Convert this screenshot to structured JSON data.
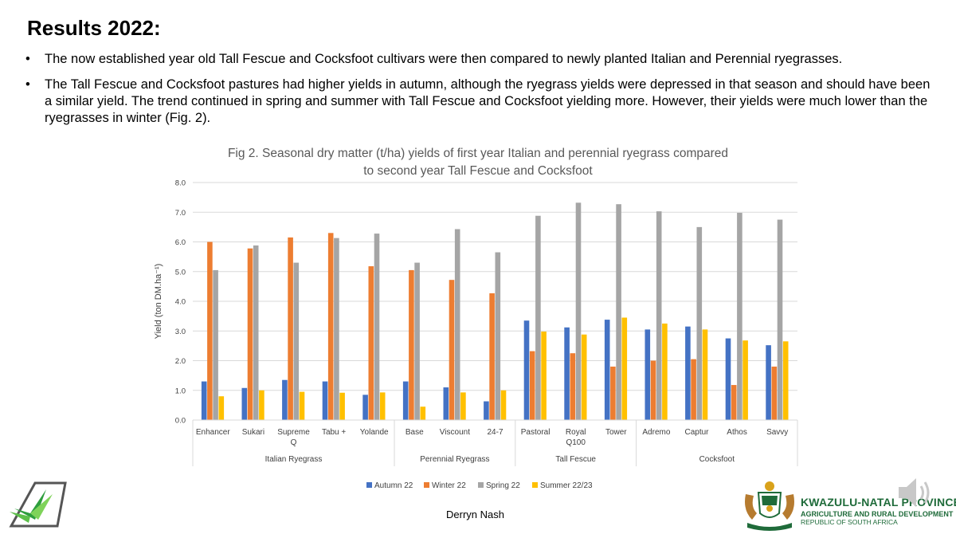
{
  "slide": {
    "title": "Results 2022:",
    "bullets": [
      "The now established year old Tall Fescue and Cocksfoot cultivars were then compared to newly planted Italian and Perennial ryegrasses.",
      "The Tall Fescue and Cocksfoot pastures had higher yields in autumn, although the ryegrass yields were depressed in that season and should have been a similar yield. The trend continued in spring and summer with Tall Fescue and Cocksfoot yielding more. However, their yields were much lower than the ryegrasses in winter (Fig. 2)."
    ],
    "bullet_glyph": "•",
    "author": "Derryn Nash",
    "logo_right": {
      "name": "KWAZULU-NATAL PROVINCE",
      "department": "AGRICULTURE AND RURAL DEVELOPMENT",
      "country": "REPUBLIC OF SOUTH AFRICA"
    }
  },
  "chart_data": {
    "type": "bar",
    "title_lines": [
      "Fig 2. Seasonal dry matter (t/ha) yields of first year Italian and perennial ryegrass compared",
      "to second year Tall Fescue and Cocksfoot"
    ],
    "ylabel": "Yield (ton DM.ha⁻¹)",
    "xlabel": "",
    "ylim": [
      0,
      8
    ],
    "yticks": [
      "0.0",
      "1.0",
      "2.0",
      "3.0",
      "4.0",
      "5.0",
      "6.0",
      "7.0",
      "8.0"
    ],
    "grid": true,
    "legend_position": "bottom",
    "categories": [
      [
        "Enhancer"
      ],
      [
        "Sukari"
      ],
      [
        "Supreme",
        "Q"
      ],
      [
        "Tabu +"
      ],
      [
        "Yolande"
      ],
      [
        "Base"
      ],
      [
        "Viscount"
      ],
      [
        "24-7"
      ],
      [
        "Pastoral"
      ],
      [
        "Royal",
        "Q100"
      ],
      [
        "Tower"
      ],
      [
        "Adremo"
      ],
      [
        "Captur"
      ],
      [
        "Athos"
      ],
      [
        "Savvy"
      ]
    ],
    "groups": [
      {
        "name": "Italian Ryegrass",
        "start": 0,
        "count": 5
      },
      {
        "name": "Perennial Ryegrass",
        "start": 5,
        "count": 3
      },
      {
        "name": "Tall Fescue",
        "start": 8,
        "count": 3
      },
      {
        "name": "Cocksfoot",
        "start": 11,
        "count": 4
      }
    ],
    "series": [
      {
        "name": "Autumn 22",
        "color": "#4472C4",
        "values": [
          1.3,
          1.08,
          1.35,
          1.3,
          0.85,
          1.3,
          1.1,
          0.63,
          3.35,
          3.12,
          3.38,
          3.05,
          3.15,
          2.75,
          2.52
        ]
      },
      {
        "name": "Winter 22",
        "color": "#ED7D31",
        "values": [
          6.0,
          5.78,
          6.15,
          6.3,
          5.18,
          5.05,
          4.72,
          4.27,
          2.32,
          2.25,
          1.8,
          2.0,
          2.05,
          1.18,
          1.8
        ]
      },
      {
        "name": "Spring 22",
        "color": "#A5A5A5",
        "values": [
          5.05,
          5.88,
          5.3,
          6.13,
          6.28,
          5.3,
          6.43,
          5.65,
          6.88,
          7.32,
          7.27,
          7.03,
          6.5,
          6.98,
          6.75
        ]
      },
      {
        "name": "Summer 22/23",
        "color": "#FFC000",
        "values": [
          0.8,
          1.0,
          0.95,
          0.92,
          0.93,
          0.45,
          0.93,
          1.0,
          2.98,
          2.88,
          3.45,
          3.25,
          3.05,
          2.68,
          2.65
        ]
      }
    ]
  }
}
